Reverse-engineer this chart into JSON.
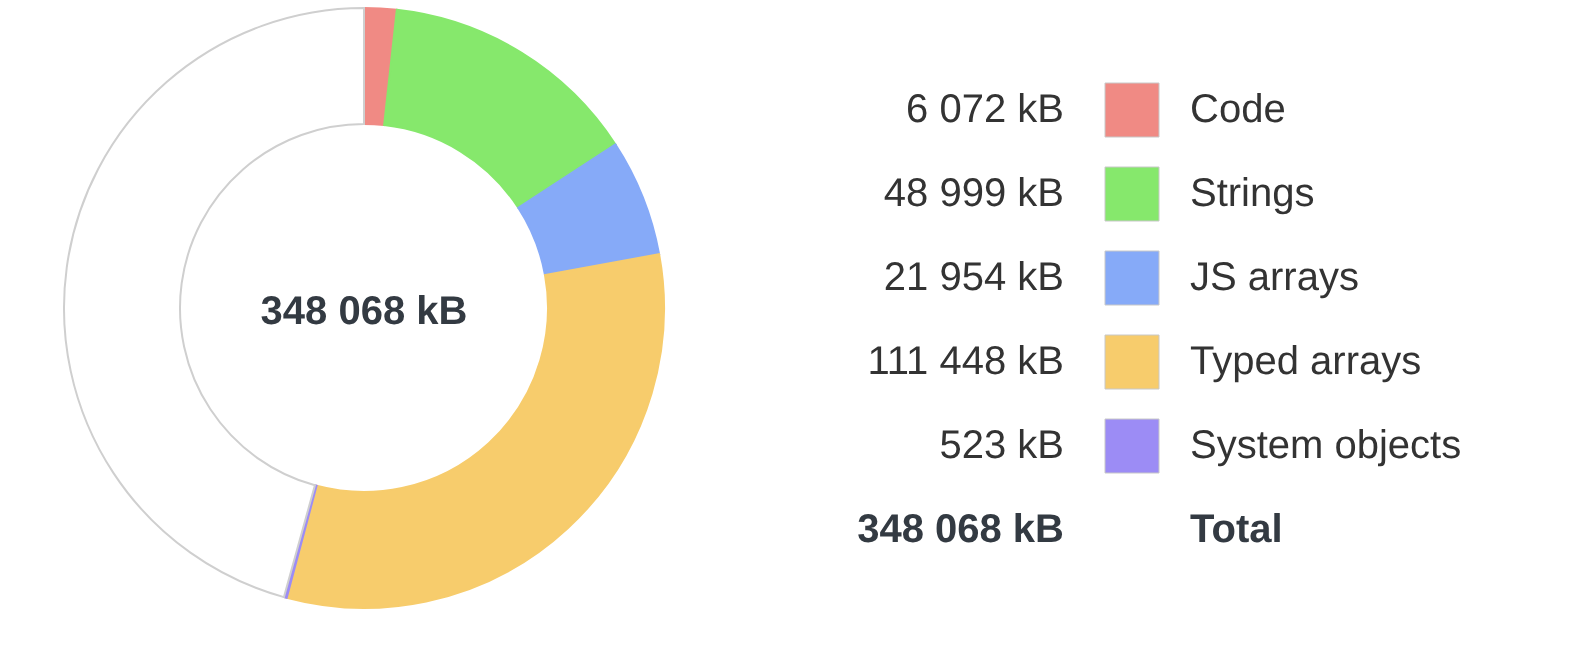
{
  "chart_data": {
    "type": "donut",
    "categories": [
      "Code",
      "Strings",
      "JS arrays",
      "Typed arrays",
      "System objects",
      null
    ],
    "values": [
      6072,
      48999,
      21954,
      111448,
      523,
      159072
    ],
    "colors": [
      "#f08a84",
      "#86e86c",
      "#86aaf8",
      "#f7cc6c",
      "#9c8cf5",
      "#ffffff"
    ],
    "value_labels": [
      "6 072 kB",
      "48 999 kB",
      "21 954 kB",
      "111 448 kB",
      "523 kB",
      null
    ],
    "annotations": [
      "348 068 kB",
      "348 068 kB",
      "Total"
    ],
    "legend": "right"
  }
}
